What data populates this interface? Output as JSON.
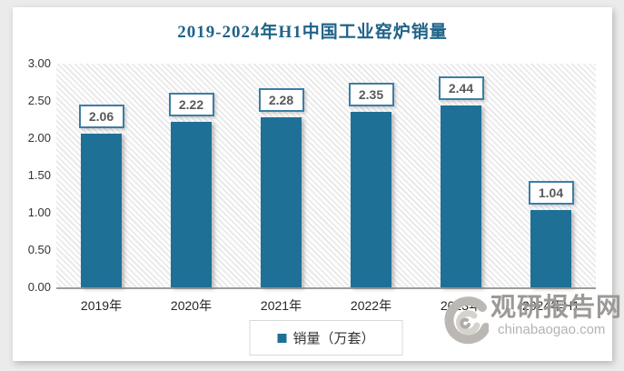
{
  "title": "2019-2024年H1中国工业窑炉销量",
  "chart_data": {
    "type": "bar",
    "categories": [
      "2019年",
      "2020年",
      "2021年",
      "2022年",
      "2023年",
      "2024年H1"
    ],
    "values": [
      2.06,
      2.22,
      2.28,
      2.35,
      2.44,
      1.04
    ],
    "value_labels": [
      "2.06",
      "2.22",
      "2.28",
      "2.35",
      "2.44",
      "1.04"
    ],
    "series_name": "销量（万套）",
    "title": "2019-2024年H1中国工业窑炉销量",
    "xlabel": "",
    "ylabel": "",
    "ylim": [
      0,
      3
    ],
    "ytick_step": 0.5,
    "yticks": [
      "3.00",
      "2.50",
      "2.00",
      "1.50",
      "1.00",
      "0.50",
      "0.00"
    ],
    "grid": false,
    "legend_position": "bottom",
    "bar_color": "#1F7096",
    "plot_background": "diagonal-hatch"
  },
  "legend": {
    "label": "销量（万套）",
    "marker_color": "#1F7096"
  },
  "watermark": {
    "site_name": "观研报告网",
    "site_url": "chinabaogao.com"
  },
  "colors": {
    "bar": "#1F7096",
    "title_text": "#1F6388",
    "data_label_border": "#3D7EA6",
    "data_label_text": "#595959",
    "axis_text": "#333333",
    "axis_line": "#9D9D9D",
    "legend_border": "#D9D9D9",
    "watermark_dark": "#9C9996",
    "watermark_light": "#B5B2AF"
  }
}
